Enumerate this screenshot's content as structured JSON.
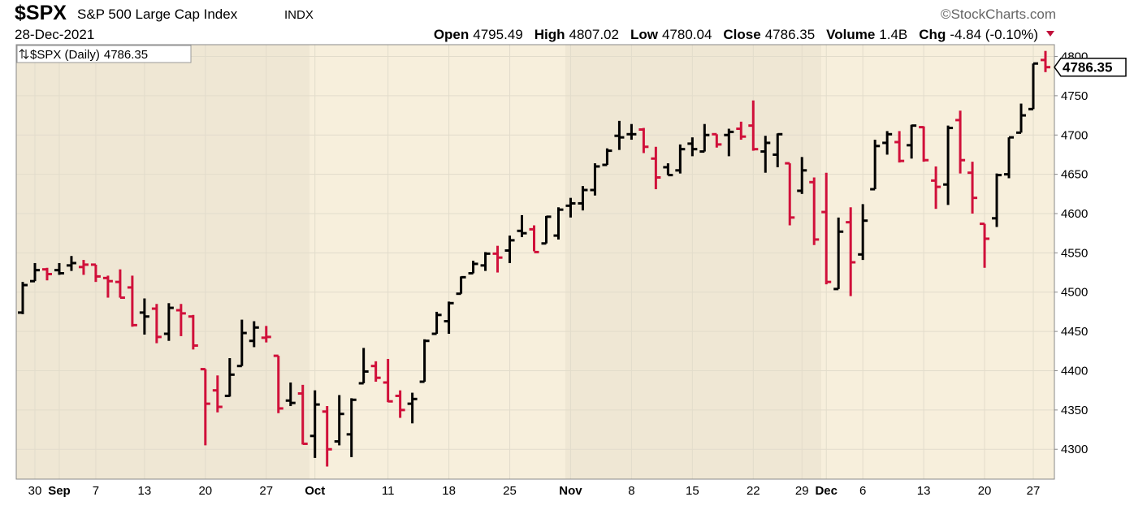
{
  "header": {
    "symbol": "$SPX",
    "name": "S&P 500 Large Cap Index",
    "exchange": "INDX",
    "brand": "©StockCharts.com",
    "date": "28-Dec-2021",
    "stats": [
      {
        "label": "Open",
        "value": "4795.49"
      },
      {
        "label": "High",
        "value": "4807.02"
      },
      {
        "label": "Low",
        "value": "4780.04"
      },
      {
        "label": "Close",
        "value": "4786.35"
      },
      {
        "label": "Volume",
        "value": "1.4B"
      },
      {
        "label": "Chg",
        "value": "-4.84 (-0.10%)"
      }
    ]
  },
  "chart_data": {
    "type": "ohlc",
    "name": "$SPX (Daily)",
    "up_color": "#000000",
    "down_color": "#d0103a",
    "grid": true,
    "ylim": [
      4262,
      4815
    ],
    "yticks": [
      4300,
      4350,
      4400,
      4450,
      4500,
      4550,
      4600,
      4650,
      4700,
      4750,
      4800
    ],
    "categories": [
      null,
      "30",
      null,
      "Sep",
      null,
      null,
      "7",
      null,
      null,
      null,
      "13",
      null,
      null,
      null,
      null,
      "20",
      null,
      null,
      null,
      null,
      "27",
      null,
      null,
      null,
      "Oct",
      null,
      null,
      null,
      null,
      null,
      "11",
      null,
      null,
      null,
      null,
      "18",
      null,
      null,
      null,
      null,
      "25",
      null,
      null,
      null,
      null,
      "Nov",
      null,
      null,
      null,
      null,
      "8",
      null,
      null,
      null,
      null,
      "15",
      null,
      null,
      null,
      null,
      "22",
      null,
      null,
      null,
      "29",
      null,
      "Dec",
      null,
      null,
      "6",
      null,
      null,
      null,
      null,
      "13",
      null,
      null,
      null,
      null,
      "20",
      null,
      null,
      null,
      "27",
      null
    ],
    "open": [
      4474,
      4514,
      4529,
      4528,
      4534,
      4532,
      4535,
      4518,
      4513,
      4506,
      4474,
      4479,
      4447,
      4477,
      4469,
      4402,
      4375,
      4368,
      4406,
      4438,
      4442,
      4419,
      4362,
      4371,
      4317,
      4348,
      4310,
      4319,
      4384,
      4406,
      4385,
      4368,
      4358,
      4386,
      4447,
      4463,
      4498,
      4524,
      4534,
      4549,
      4553,
      4578,
      4580,
      4562,
      4572,
      4610,
      4613,
      4630,
      4662,
      4699,
      4701,
      4707,
      4670,
      4659,
      4655,
      4689,
      4679,
      4701,
      4700,
      4708,
      4712,
      4679,
      4675,
      4664,
      4629,
      4640,
      4602,
      4504,
      4589,
      4548,
      4631,
      4690,
      4691,
      4687,
      4710,
      4642,
      4637,
      4719,
      4652,
      4587,
      4594,
      4650,
      4703,
      4733,
      4795.49
    ],
    "high": [
      4513,
      4537,
      4531,
      4537,
      4546,
      4541,
      4535,
      4521,
      4529,
      4521,
      4492,
      4485,
      4486,
      4485,
      4471,
      4402,
      4394,
      4416,
      4465,
      4463,
      4457,
      4419,
      4385,
      4382,
      4375,
      4355,
      4369,
      4365,
      4429,
      4412,
      4415,
      4375,
      4372,
      4440,
      4475,
      4488,
      4520,
      4540,
      4551,
      4559,
      4572,
      4598,
      4585,
      4597,
      4608,
      4620,
      4635,
      4664,
      4683,
      4718,
      4714,
      4709,
      4685,
      4664,
      4688,
      4697,
      4714,
      4701,
      4708,
      4717,
      4744,
      4699,
      4702,
      4664,
      4672,
      4646,
      4652,
      4595,
      4608,
      4612,
      4694,
      4705,
      4705,
      4713,
      4711,
      4660,
      4712,
      4731,
      4666,
      4587,
      4651,
      4697,
      4740,
      4791,
      4807.02
    ],
    "low": [
      4472,
      4514,
      4515,
      4522,
      4527,
      4522,
      4513,
      4493,
      4493,
      4456,
      4446,
      4435,
      4438,
      4444,
      4427,
      4305,
      4347,
      4367,
      4406,
      4430,
      4436,
      4346,
      4355,
      4306,
      4289,
      4278,
      4305,
      4290,
      4384,
      4386,
      4360,
      4340,
      4333,
      4386,
      4447,
      4447,
      4498,
      4524,
      4527,
      4525,
      4537,
      4570,
      4552,
      4562,
      4567,
      4595,
      4604,
      4623,
      4662,
      4681,
      4694,
      4677,
      4631,
      4649,
      4651,
      4673,
      4679,
      4684,
      4673,
      4694,
      4680,
      4652,
      4659,
      4585,
      4625,
      4560,
      4510,
      4504,
      4495,
      4541,
      4631,
      4675,
      4665,
      4670,
      4666,
      4606,
      4611,
      4651,
      4600,
      4531,
      4583,
      4645,
      4703,
      4733,
      4780.04
    ],
    "close": [
      4509,
      4528,
      4523,
      4524,
      4537,
      4535,
      4520,
      4514,
      4493,
      4458,
      4469,
      4443,
      4480,
      4473,
      4432,
      4358,
      4354,
      4395,
      4448,
      4455,
      4443,
      4352,
      4359,
      4307,
      4357,
      4300,
      4345,
      4363,
      4399,
      4391,
      4361,
      4350,
      4364,
      4438,
      4471,
      4486,
      4519,
      4536,
      4549,
      4544,
      4566,
      4575,
      4551,
      4596,
      4605,
      4613,
      4630,
      4660,
      4680,
      4697,
      4701,
      4685,
      4646,
      4649,
      4682,
      4682,
      4700,
      4688,
      4704,
      4698,
      4682,
      4690,
      4701,
      4595,
      4655,
      4567,
      4513,
      4577,
      4538,
      4591,
      4686,
      4701,
      4667,
      4712,
      4668,
      4634,
      4709,
      4668,
      4620,
      4568,
      4649,
      4697,
      4725,
      4791,
      4786.35
    ]
  }
}
